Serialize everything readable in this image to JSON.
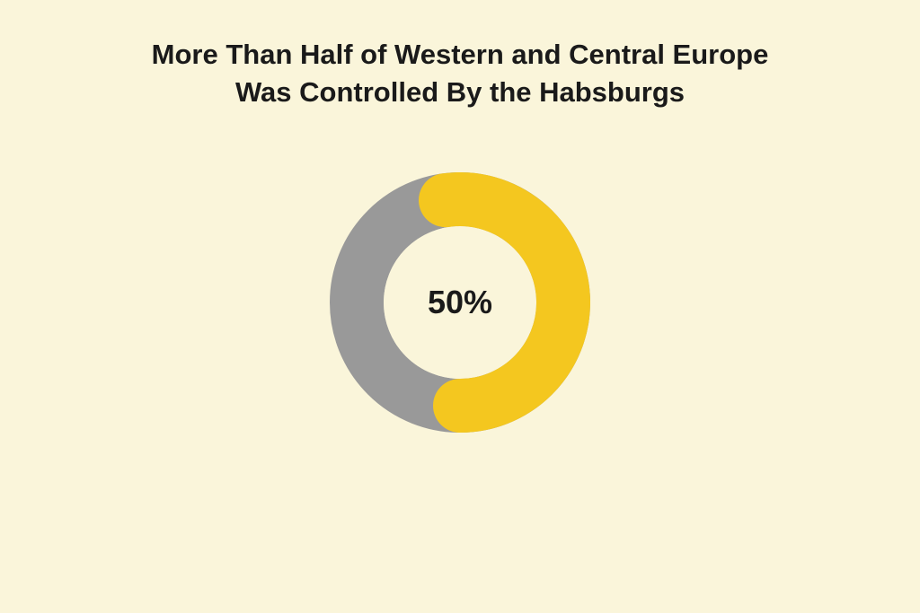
{
  "title": "More Than Half of Western and Central Europe Was Controlled By the Habsburgs",
  "title_fontsize": 31,
  "title_color": "#1a1a1a",
  "background_color": "#faf5da",
  "chart": {
    "type": "donut",
    "percentage": 50,
    "center_label": "50%",
    "center_label_fontsize": 36,
    "center_label_color": "#1a1a1a",
    "outer_radius": 145,
    "inner_radius": 85,
    "primary_color": "#f4c71f",
    "secondary_color": "#999999",
    "start_angle_deg": -8,
    "gap_offset_deg": 8
  }
}
